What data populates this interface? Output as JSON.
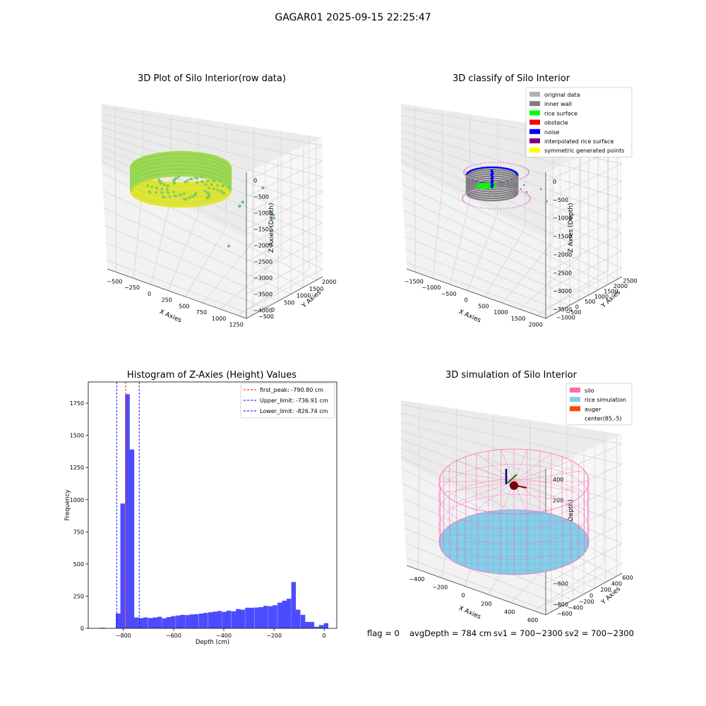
{
  "figure": {
    "title": "GAGAR01 2025-09-15 22:25:47",
    "footer": {
      "flag": "flag = 0",
      "avg_depth": "avgDepth = 784 cm",
      "sv1": "sv1 = 700~2300",
      "sv2": "sv2 = 700~2300"
    }
  },
  "colors": {
    "original": "#b3b3b3",
    "wall": "#808080",
    "rice_surface": "#00ff00",
    "obstacle": "#ff0000",
    "noise": "#0000ff",
    "interpolated": "#800080",
    "symmetric": "#ffff00",
    "silo": "#ff69b4",
    "rice_sim": "#87ceeb",
    "auger": "#ff4500",
    "hist": "#0000ff"
  },
  "chart_data": [
    {
      "type": "scatter3d",
      "title": "3D Plot of Silo Interior(row data)",
      "xlabel": "X Axies",
      "ylabel": "Y Axies",
      "zlabel": "Z Axies (Depth)",
      "xticks": [
        "−500",
        "−250",
        "0",
        "250",
        "500",
        "750",
        "1000",
        "1250"
      ],
      "yticks": [
        "−500",
        "0",
        "500",
        "1000",
        "1500",
        "2000"
      ],
      "zticks": [
        "0",
        "−500",
        "−1000",
        "−1500",
        "−2000",
        "−2500",
        "−3000",
        "−3500",
        "−4000"
      ],
      "ring": {
        "center": [
          250,
          380
        ],
        "radius": 500,
        "z_top": -950,
        "z_bottom": -1650
      },
      "outliers": [
        [
          980,
          1000,
          -1400
        ],
        [
          1120,
          960,
          -2650
        ],
        [
          680,
          820,
          -2250
        ],
        [
          540,
          1800,
          -3300
        ],
        [
          720,
          880,
          -2050
        ]
      ]
    },
    {
      "type": "scatter3d",
      "title": "3D classify of Silo Interior",
      "xlabel": "X Axies",
      "ylabel": "Y Axies",
      "zlabel": "Z Axies (Depth)",
      "xticks": [
        "−1500",
        "−1000",
        "−500",
        "0",
        "500",
        "1000",
        "1500",
        "2000"
      ],
      "yticks": [
        "−1000",
        "−500",
        "0",
        "500",
        "1000",
        "1500",
        "2000",
        "2500"
      ],
      "zticks": [
        "0",
        "−500",
        "−1000",
        "−1500",
        "−2000",
        "−2500",
        "−3000",
        "−3500"
      ],
      "legend_loc": "upper right",
      "legend": [
        {
          "label": "original data",
          "color": "#b3b3b3"
        },
        {
          "label": "inner wall",
          "color": "#808080"
        },
        {
          "label": "rice surface",
          "color": "#00ff00"
        },
        {
          "label": "obstacle",
          "color": "#ff0000"
        },
        {
          "label": "noise",
          "color": "#0000ff"
        },
        {
          "label": "interpolated rice surface",
          "color": "#800080"
        },
        {
          "label": "symmetric generated points",
          "color": "#ffff00"
        }
      ]
    },
    {
      "type": "bar",
      "title": "Histogram of Z-Axies (Height) Values",
      "xlabel": "Depth (cm)",
      "ylabel": "Frequency",
      "xlim": [
        -940,
        50
      ],
      "ylim": [
        0,
        1915
      ],
      "xticks": [
        -800,
        -600,
        -400,
        -200,
        0
      ],
      "yticks": [
        0,
        250,
        500,
        750,
        1000,
        1250,
        1500,
        1750
      ],
      "bin_width": 18.4,
      "bins": [
        [
          -892,
          5
        ],
        [
          -830,
          115
        ],
        [
          -812,
          970
        ],
        [
          -793,
          1820
        ],
        [
          -775,
          1390
        ],
        [
          -757,
          85
        ],
        [
          -738,
          80
        ],
        [
          -720,
          85
        ],
        [
          -701,
          80
        ],
        [
          -683,
          85
        ],
        [
          -665,
          90
        ],
        [
          -646,
          78
        ],
        [
          -628,
          88
        ],
        [
          -610,
          95
        ],
        [
          -591,
          100
        ],
        [
          -573,
          105
        ],
        [
          -554,
          103
        ],
        [
          -536,
          108
        ],
        [
          -518,
          110
        ],
        [
          -499,
          115
        ],
        [
          -481,
          120
        ],
        [
          -462,
          125
        ],
        [
          -444,
          130
        ],
        [
          -426,
          135
        ],
        [
          -407,
          128
        ],
        [
          -389,
          138
        ],
        [
          -370,
          133
        ],
        [
          -352,
          150
        ],
        [
          -334,
          145
        ],
        [
          -315,
          160
        ],
        [
          -297,
          160
        ],
        [
          -278,
          162
        ],
        [
          -260,
          165
        ],
        [
          -242,
          175
        ],
        [
          -223,
          172
        ],
        [
          -205,
          180
        ],
        [
          -186,
          200
        ],
        [
          -168,
          215
        ],
        [
          -150,
          230
        ],
        [
          -131,
          360
        ],
        [
          -113,
          145
        ],
        [
          -94,
          105
        ],
        [
          -76,
          50
        ],
        [
          -58,
          50
        ],
        [
          -39,
          12
        ],
        [
          -21,
          25
        ],
        [
          -2,
          40
        ]
      ],
      "vlines": [
        {
          "x": -790.8,
          "color": "#ff0000",
          "label": "first_peak: -790.80 cm"
        },
        {
          "x": -736.91,
          "color": "#0000ff",
          "label": "Upper_limit: -736.91 cm"
        },
        {
          "x": -826.74,
          "color": "#0000ff",
          "label": "Lower_limit: -826.74 cm"
        }
      ],
      "legend_loc": "upper right"
    },
    {
      "type": "surface3d",
      "title": "3D simulation of Silo Interior",
      "xlabel": "X Axies",
      "ylabel": "Y Axies",
      "zlabel": "Z Axies (Depth)",
      "xticks": [
        "−400",
        "−200",
        "0",
        "200",
        "400",
        "600"
      ],
      "yticks": [
        "−600",
        "−400",
        "−200",
        "0",
        "200",
        "400",
        "600"
      ],
      "zticks": [
        "400",
        "200",
        "0",
        "−200",
        "−400",
        "−600",
        "−800"
      ],
      "legend_loc": "upper right",
      "legend": [
        {
          "label": "silo",
          "color": "#ff69b4"
        },
        {
          "label": "rice simulation",
          "color": "#87ceeb"
        },
        {
          "label": "auger",
          "color": "#ff4500"
        },
        {
          "label": "center(85,-5)",
          "color": ""
        }
      ],
      "silo": {
        "center": [
          85,
          -5
        ],
        "z_top": 0,
        "z_bottom": -784
      }
    }
  ]
}
